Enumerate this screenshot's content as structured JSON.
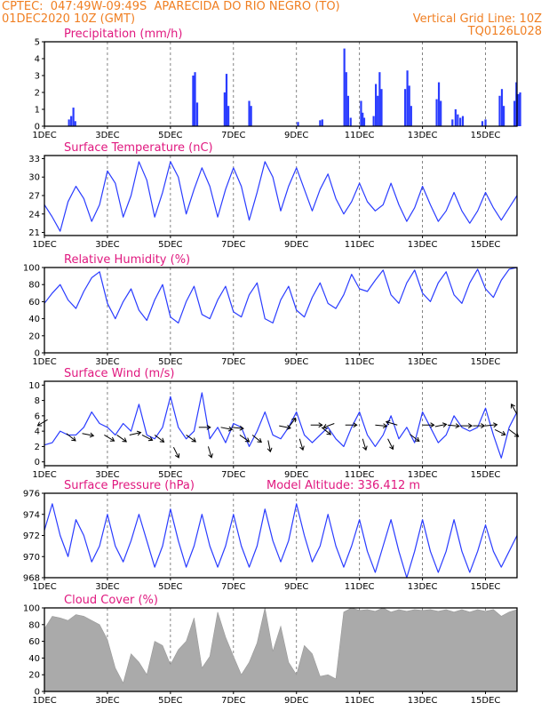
{
  "header": {
    "line1_left": "CPTEC:  047:49W-09:49S  APARECIDA DO RIO NEGRO (TO)",
    "line2_left": "01DEC2020 10Z (GMT)",
    "line2_right": "Vertical Grid Line: 10Z",
    "line3_right": "TQ0126L028"
  },
  "colors": {
    "header": "#f07f22",
    "title": "#e0187f",
    "line": "#2a3cff",
    "bar": "#2a3cff",
    "cloud": "#aaaaaa"
  },
  "x_tick_labels": [
    "1DEC",
    "3DEC",
    "5DEC",
    "7DEC",
    "9DEC",
    "11DEC",
    "13DEC",
    "15DEC"
  ],
  "chart_data": [
    {
      "type": "bar",
      "title": "Precipitation (mm/h)",
      "ylim": [
        0,
        5
      ],
      "yticks": [
        0,
        1,
        2,
        3,
        4,
        5
      ],
      "x_unit": "days since 01DEC2020 10Z",
      "xlim": [
        0,
        15
      ],
      "bars": [
        [
          0.78,
          0.4
        ],
        [
          0.85,
          0.6
        ],
        [
          0.92,
          1.1
        ],
        [
          0.98,
          0.3
        ],
        [
          4.72,
          3.0
        ],
        [
          4.78,
          3.2
        ],
        [
          4.85,
          1.4
        ],
        [
          5.72,
          2.0
        ],
        [
          5.78,
          3.1
        ],
        [
          5.84,
          1.2
        ],
        [
          6.5,
          1.5
        ],
        [
          6.56,
          1.2
        ],
        [
          8.05,
          0.25
        ],
        [
          8.75,
          0.35
        ],
        [
          8.82,
          0.4
        ],
        [
          9.52,
          4.6
        ],
        [
          9.58,
          3.2
        ],
        [
          9.64,
          1.8
        ],
        [
          9.72,
          0.5
        ],
        [
          10.05,
          1.5
        ],
        [
          10.1,
          0.8
        ],
        [
          10.15,
          0.5
        ],
        [
          10.45,
          0.6
        ],
        [
          10.52,
          2.5
        ],
        [
          10.58,
          1.8
        ],
        [
          10.64,
          3.2
        ],
        [
          10.7,
          2.2
        ],
        [
          11.45,
          2.2
        ],
        [
          11.52,
          3.3
        ],
        [
          11.58,
          2.4
        ],
        [
          11.64,
          1.2
        ],
        [
          12.45,
          1.6
        ],
        [
          12.52,
          2.6
        ],
        [
          12.58,
          1.5
        ],
        [
          12.95,
          0.4
        ],
        [
          13.05,
          1.0
        ],
        [
          13.12,
          0.7
        ],
        [
          13.2,
          0.5
        ],
        [
          13.28,
          0.6
        ],
        [
          13.9,
          0.3
        ],
        [
          14.0,
          0.4
        ],
        [
          14.45,
          1.8
        ],
        [
          14.52,
          2.2
        ],
        [
          14.58,
          1.2
        ],
        [
          14.92,
          1.5
        ],
        [
          14.98,
          2.6
        ],
        [
          15.04,
          1.9
        ],
        [
          15.1,
          2.0
        ]
      ]
    },
    {
      "type": "line",
      "title": "Surface Temperature (nC)",
      "ylim": [
        20.5,
        33.5
      ],
      "yticks": [
        21,
        24,
        27,
        30,
        33
      ],
      "x": [
        0,
        0.25,
        0.5,
        0.75,
        1.0,
        1.25,
        1.5,
        1.75,
        2.0,
        2.25,
        2.5,
        2.75,
        3.0,
        3.25,
        3.5,
        3.75,
        4.0,
        4.25,
        4.5,
        4.75,
        5.0,
        5.25,
        5.5,
        5.75,
        6.0,
        6.25,
        6.5,
        6.75,
        7.0,
        7.25,
        7.5,
        7.75,
        8.0,
        8.25,
        8.5,
        8.75,
        9.0,
        9.25,
        9.5,
        9.75,
        10.0,
        10.25,
        10.5,
        10.75,
        11.0,
        11.25,
        11.5,
        11.75,
        12.0,
        12.25,
        12.5,
        12.75,
        13.0,
        13.25,
        13.5,
        13.75,
        14.0,
        14.25,
        14.5,
        14.75,
        15.0
      ],
      "y": [
        25.5,
        23.5,
        21.2,
        26.0,
        28.5,
        26.5,
        22.8,
        25.5,
        31.0,
        29.0,
        23.5,
        27.0,
        32.5,
        29.5,
        23.5,
        27.5,
        32.5,
        30.0,
        24.0,
        28.0,
        31.5,
        28.5,
        23.5,
        28.0,
        31.5,
        28.5,
        23.0,
        27.5,
        32.5,
        30.0,
        24.5,
        28.5,
        31.5,
        28.0,
        24.5,
        28.0,
        30.5,
        26.5,
        24.0,
        26.0,
        29.0,
        26.0,
        24.5,
        25.5,
        29.0,
        25.5,
        22.8,
        25.0,
        28.5,
        25.5,
        22.8,
        24.5,
        27.5,
        24.5,
        22.5,
        24.5,
        27.5,
        25.0,
        23.0,
        25.0,
        27.0
      ]
    },
    {
      "type": "line",
      "title": "Relative Humidity (%)",
      "ylim": [
        0,
        100
      ],
      "yticks": [
        0,
        20,
        40,
        60,
        80,
        100
      ],
      "x": [
        0,
        0.25,
        0.5,
        0.75,
        1.0,
        1.25,
        1.5,
        1.75,
        2.0,
        2.25,
        2.5,
        2.75,
        3.0,
        3.25,
        3.5,
        3.75,
        4.0,
        4.25,
        4.5,
        4.75,
        5.0,
        5.25,
        5.5,
        5.75,
        6.0,
        6.25,
        6.5,
        6.75,
        7.0,
        7.25,
        7.5,
        7.75,
        8.0,
        8.25,
        8.5,
        8.75,
        9.0,
        9.25,
        9.5,
        9.75,
        10.0,
        10.25,
        10.5,
        10.75,
        11.0,
        11.25,
        11.5,
        11.75,
        12.0,
        12.25,
        12.5,
        12.75,
        13.0,
        13.25,
        13.5,
        13.75,
        14.0,
        14.25,
        14.5,
        14.75,
        15.0
      ],
      "y": [
        58,
        70,
        80,
        62,
        52,
        72,
        88,
        95,
        58,
        40,
        60,
        75,
        50,
        38,
        62,
        80,
        42,
        35,
        60,
        78,
        45,
        40,
        62,
        78,
        48,
        42,
        68,
        82,
        40,
        35,
        62,
        78,
        50,
        42,
        65,
        82,
        58,
        52,
        68,
        92,
        75,
        72,
        85,
        97,
        68,
        58,
        82,
        97,
        70,
        60,
        82,
        95,
        68,
        58,
        82,
        98,
        75,
        65,
        85,
        98,
        100
      ]
    },
    {
      "type": "line",
      "title": "Surface Wind (m/s)",
      "ylim": [
        -0.5,
        10.5
      ],
      "yticks": [
        0,
        2,
        4,
        6,
        8,
        10
      ],
      "x": [
        0,
        0.25,
        0.5,
        0.75,
        1.0,
        1.25,
        1.5,
        1.75,
        2.0,
        2.25,
        2.5,
        2.75,
        3.0,
        3.25,
        3.5,
        3.75,
        4.0,
        4.25,
        4.5,
        4.75,
        5.0,
        5.25,
        5.5,
        5.75,
        6.0,
        6.25,
        6.5,
        6.75,
        7.0,
        7.25,
        7.5,
        7.75,
        8.0,
        8.25,
        8.5,
        8.75,
        9.0,
        9.25,
        9.5,
        9.75,
        10.0,
        10.25,
        10.5,
        10.75,
        11.0,
        11.25,
        11.5,
        11.75,
        12.0,
        12.25,
        12.5,
        12.75,
        13.0,
        13.25,
        13.5,
        13.75,
        14.0,
        14.25,
        14.5,
        14.75,
        15.0
      ],
      "y": [
        2.2,
        2.5,
        4.0,
        3.5,
        3.5,
        4.5,
        6.5,
        5.0,
        4.5,
        3.5,
        5.0,
        4.0,
        7.5,
        3.5,
        3.0,
        4.5,
        8.5,
        4.5,
        3.0,
        4.0,
        9.0,
        3.0,
        4.5,
        2.5,
        5.0,
        4.5,
        2.0,
        4.0,
        6.5,
        3.5,
        3.0,
        4.5,
        6.5,
        3.5,
        2.5,
        3.5,
        4.5,
        3.0,
        2.0,
        4.5,
        6.5,
        3.5,
        2.0,
        3.5,
        6.0,
        3.0,
        4.5,
        2.5,
        6.5,
        4.5,
        2.5,
        3.5,
        6.0,
        4.5,
        4.0,
        4.5,
        7.0,
        3.5,
        0.5,
        4.5,
        6.5
      ],
      "arrows": [
        [
          0.1,
          5.5,
          -1,
          0.6
        ],
        [
          0.7,
          3.7,
          1,
          0.8
        ],
        [
          1.2,
          3.7,
          1,
          0.2
        ],
        [
          1.9,
          3.5,
          1,
          0.6
        ],
        [
          2.3,
          3.5,
          1,
          0.7
        ],
        [
          2.7,
          3.5,
          0.9,
          -0.2
        ],
        [
          3.1,
          3.5,
          1,
          0.5
        ],
        [
          3.5,
          3.5,
          0.8,
          0.6
        ],
        [
          4.1,
          1.9,
          0.5,
          1
        ],
        [
          4.5,
          3.5,
          1,
          0.7
        ],
        [
          4.9,
          4.5,
          1,
          0
        ],
        [
          5.2,
          2.0,
          0.3,
          1
        ],
        [
          5.6,
          4.5,
          1,
          0.2
        ],
        [
          5.95,
          4.5,
          1,
          0.1
        ],
        [
          6.2,
          3.5,
          1,
          0.7
        ],
        [
          6.6,
          3.5,
          1,
          0.8
        ],
        [
          7.1,
          2.8,
          0.2,
          1
        ],
        [
          7.45,
          4.7,
          1,
          0.2
        ],
        [
          7.75,
          4.5,
          0.6,
          -0.8
        ],
        [
          8.1,
          3.0,
          0.3,
          1
        ],
        [
          8.45,
          4.8,
          1,
          0
        ],
        [
          8.8,
          4.5,
          1,
          0.8
        ],
        [
          9.2,
          5.0,
          -0.8,
          0.3
        ],
        [
          9.55,
          4.8,
          1,
          0
        ],
        [
          10.1,
          3.0,
          0.3,
          1
        ],
        [
          10.5,
          4.8,
          1,
          0.1
        ],
        [
          10.9,
          3.0,
          0.5,
          1
        ],
        [
          11.2,
          4.8,
          -1,
          -0.3
        ],
        [
          11.6,
          3.6,
          0.8,
          0.6
        ],
        [
          12.0,
          4.8,
          1,
          0
        ],
        [
          12.4,
          4.6,
          1,
          -0.2
        ],
        [
          12.8,
          4.8,
          1,
          0.1
        ],
        [
          13.2,
          4.7,
          1,
          0
        ],
        [
          13.6,
          4.7,
          1,
          0
        ],
        [
          14.0,
          4.7,
          1,
          -0.1
        ],
        [
          14.3,
          4.2,
          1,
          0.5
        ],
        [
          14.75,
          4.2,
          0.8,
          0.6
        ],
        [
          15.0,
          6.2,
          -0.5,
          -0.9
        ]
      ]
    },
    {
      "type": "line",
      "title": "Surface Pressure (hPa)",
      "annotation": "Model Altitude: 336.412 m",
      "ylim": [
        968,
        976
      ],
      "yticks": [
        968,
        970,
        972,
        974,
        976
      ],
      "x": [
        0,
        0.25,
        0.5,
        0.75,
        1.0,
        1.25,
        1.5,
        1.75,
        2.0,
        2.25,
        2.5,
        2.75,
        3.0,
        3.25,
        3.5,
        3.75,
        4.0,
        4.25,
        4.5,
        4.75,
        5.0,
        5.25,
        5.5,
        5.75,
        6.0,
        6.25,
        6.5,
        6.75,
        7.0,
        7.25,
        7.5,
        7.75,
        8.0,
        8.25,
        8.5,
        8.75,
        9.0,
        9.25,
        9.5,
        9.75,
        10.0,
        10.25,
        10.5,
        10.75,
        11.0,
        11.25,
        11.5,
        11.75,
        12.0,
        12.25,
        12.5,
        12.75,
        13.0,
        13.25,
        13.5,
        13.75,
        14.0,
        14.25,
        14.5,
        14.75,
        15.0
      ],
      "y": [
        972.5,
        975.0,
        972.0,
        970.0,
        973.5,
        972.0,
        969.5,
        971.0,
        974.0,
        971.0,
        969.5,
        971.5,
        974.0,
        971.5,
        969.0,
        971.0,
        974.5,
        971.5,
        969.0,
        971.0,
        974.0,
        971.0,
        969.0,
        971.0,
        974.0,
        971.0,
        969.0,
        971.0,
        974.5,
        971.5,
        969.5,
        971.5,
        975.0,
        972.0,
        969.5,
        971.0,
        974.0,
        971.0,
        969.0,
        971.0,
        973.5,
        970.5,
        968.5,
        971.0,
        973.5,
        970.5,
        968.0,
        970.5,
        973.5,
        970.5,
        968.5,
        970.5,
        973.5,
        970.5,
        968.5,
        970.5,
        973.0,
        970.5,
        969.0,
        970.5,
        972.0
      ]
    },
    {
      "type": "area",
      "title": "Cloud Cover (%)",
      "ylim": [
        0,
        100
      ],
      "yticks": [
        0,
        20,
        40,
        60,
        80,
        100
      ],
      "x": [
        0,
        0.25,
        0.5,
        0.75,
        1.0,
        1.25,
        1.5,
        1.75,
        2.0,
        2.25,
        2.5,
        2.75,
        3.0,
        3.25,
        3.5,
        3.75,
        4.0,
        4.25,
        4.5,
        4.75,
        5.0,
        5.25,
        5.5,
        5.75,
        6.0,
        6.25,
        6.5,
        6.75,
        7.0,
        7.25,
        7.5,
        7.75,
        8.0,
        8.25,
        8.5,
        8.75,
        9.0,
        9.25,
        9.5,
        9.75,
        10.0,
        10.25,
        10.5,
        10.75,
        11.0,
        11.25,
        11.5,
        11.75,
        12.0,
        12.25,
        12.5,
        12.75,
        13.0,
        13.25,
        13.5,
        13.75,
        14.0,
        14.25,
        14.5,
        14.75,
        15.0
      ],
      "y": [
        75,
        90,
        88,
        85,
        92,
        90,
        85,
        80,
        62,
        28,
        10,
        45,
        35,
        20,
        60,
        55,
        32,
        50,
        60,
        88,
        28,
        42,
        95,
        65,
        42,
        20,
        35,
        58,
        100,
        48,
        78,
        35,
        20,
        55,
        45,
        18,
        20,
        15,
        95,
        100,
        97,
        98,
        96,
        100,
        95,
        98,
        96,
        98,
        97,
        98,
        96,
        98,
        95,
        98,
        95,
        98,
        96,
        98,
        90,
        95,
        98
      ]
    }
  ]
}
